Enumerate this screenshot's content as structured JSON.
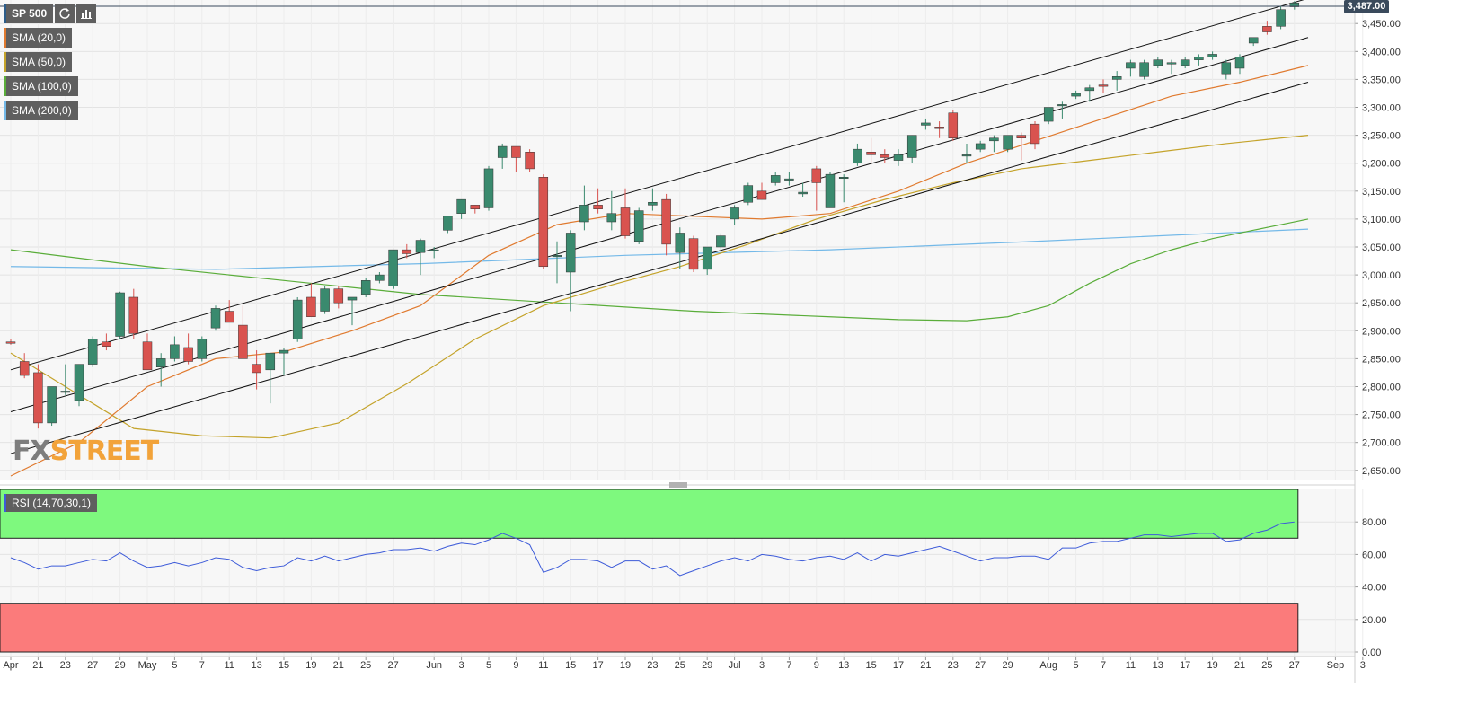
{
  "legend": {
    "symbol": "SP 500",
    "refresh_icon": "refresh-icon",
    "indicators_icon": "indicators-icon",
    "sma20": "SMA (20,0)",
    "sma50": "SMA (50,0)",
    "sma100": "SMA (100,0)",
    "sma200": "SMA (200,0)",
    "rsi": "RSI (14,70,30,1)"
  },
  "price_tag": "3,487.00",
  "watermark": {
    "part1": "FX",
    "part2": "STREET"
  },
  "colors": {
    "up": "#3a8a6e",
    "down": "#d9534f",
    "sma20": "#e07a2f",
    "sma50": "#c4a32a",
    "sma100": "#5aad3a",
    "sma200": "#74b9e8",
    "rsi_line": "#3d5bd9",
    "rsi_over": "#7ef97e",
    "rsi_under": "#fb7b7b",
    "channel": "#111111"
  },
  "chart_data": {
    "type": "candlestick",
    "title": "",
    "y_ticks": [
      "3,450.00",
      "3,400.00",
      "3,350.00",
      "3,300.00",
      "3,250.00",
      "3,200.00",
      "3,150.00",
      "3,100.00",
      "3,050.00",
      "3,000.00",
      "2,950.00",
      "2,900.00",
      "2,850.00",
      "2,800.00",
      "2,750.00",
      "2,700.00",
      "2,650.00"
    ],
    "ylim": [
      2640,
      3490
    ],
    "x_ticks": [
      {
        "label": "Apr",
        "idx": 0
      },
      {
        "label": "21",
        "idx": 2
      },
      {
        "label": "23",
        "idx": 4
      },
      {
        "label": "27",
        "idx": 6
      },
      {
        "label": "29",
        "idx": 8
      },
      {
        "label": "May",
        "idx": 10
      },
      {
        "label": "5",
        "idx": 12
      },
      {
        "label": "7",
        "idx": 14
      },
      {
        "label": "11",
        "idx": 16
      },
      {
        "label": "13",
        "idx": 18
      },
      {
        "label": "15",
        "idx": 20
      },
      {
        "label": "19",
        "idx": 22
      },
      {
        "label": "21",
        "idx": 24
      },
      {
        "label": "25",
        "idx": 26
      },
      {
        "label": "27",
        "idx": 28
      },
      {
        "label": "Jun",
        "idx": 31
      },
      {
        "label": "3",
        "idx": 33
      },
      {
        "label": "5",
        "idx": 35
      },
      {
        "label": "9",
        "idx": 37
      },
      {
        "label": "11",
        "idx": 39
      },
      {
        "label": "15",
        "idx": 41
      },
      {
        "label": "17",
        "idx": 43
      },
      {
        "label": "19",
        "idx": 45
      },
      {
        "label": "23",
        "idx": 47
      },
      {
        "label": "25",
        "idx": 49
      },
      {
        "label": "29",
        "idx": 51
      },
      {
        "label": "Jul",
        "idx": 53
      },
      {
        "label": "3",
        "idx": 55
      },
      {
        "label": "7",
        "idx": 57
      },
      {
        "label": "9",
        "idx": 59
      },
      {
        "label": "13",
        "idx": 61
      },
      {
        "label": "15",
        "idx": 63
      },
      {
        "label": "17",
        "idx": 65
      },
      {
        "label": "21",
        "idx": 67
      },
      {
        "label": "23",
        "idx": 69
      },
      {
        "label": "27",
        "idx": 71
      },
      {
        "label": "29",
        "idx": 73
      },
      {
        "label": "Aug",
        "idx": 76
      },
      {
        "label": "5",
        "idx": 78
      },
      {
        "label": "7",
        "idx": 80
      },
      {
        "label": "11",
        "idx": 82
      },
      {
        "label": "13",
        "idx": 84
      },
      {
        "label": "17",
        "idx": 86
      },
      {
        "label": "19",
        "idx": 88
      },
      {
        "label": "21",
        "idx": 90
      },
      {
        "label": "25",
        "idx": 92
      },
      {
        "label": "27",
        "idx": 94
      },
      {
        "label": "Sep",
        "idx": 97
      },
      {
        "label": "3",
        "idx": 99
      }
    ],
    "candles": [
      {
        "o": 2880,
        "h": 2885,
        "l": 2875,
        "c": 2878
      },
      {
        "o": 2845,
        "h": 2860,
        "l": 2815,
        "c": 2820
      },
      {
        "o": 2825,
        "h": 2840,
        "l": 2725,
        "c": 2735
      },
      {
        "o": 2735,
        "h": 2800,
        "l": 2730,
        "c": 2800
      },
      {
        "o": 2790,
        "h": 2840,
        "l": 2785,
        "c": 2792
      },
      {
        "o": 2775,
        "h": 2840,
        "l": 2765,
        "c": 2840
      },
      {
        "o": 2840,
        "h": 2890,
        "l": 2835,
        "c": 2885
      },
      {
        "o": 2880,
        "h": 2895,
        "l": 2865,
        "c": 2872
      },
      {
        "o": 2890,
        "h": 2970,
        "l": 2885,
        "c": 2968
      },
      {
        "o": 2960,
        "h": 2975,
        "l": 2885,
        "c": 2895
      },
      {
        "o": 2880,
        "h": 2895,
        "l": 2830,
        "c": 2830
      },
      {
        "o": 2835,
        "h": 2860,
        "l": 2800,
        "c": 2850
      },
      {
        "o": 2850,
        "h": 2890,
        "l": 2845,
        "c": 2875
      },
      {
        "o": 2870,
        "h": 2895,
        "l": 2840,
        "c": 2845
      },
      {
        "o": 2850,
        "h": 2890,
        "l": 2845,
        "c": 2885
      },
      {
        "o": 2905,
        "h": 2945,
        "l": 2900,
        "c": 2940
      },
      {
        "o": 2935,
        "h": 2955,
        "l": 2915,
        "c": 2915
      },
      {
        "o": 2910,
        "h": 2945,
        "l": 2850,
        "c": 2850
      },
      {
        "o": 2840,
        "h": 2865,
        "l": 2795,
        "c": 2825
      },
      {
        "o": 2830,
        "h": 2860,
        "l": 2770,
        "c": 2860
      },
      {
        "o": 2860,
        "h": 2870,
        "l": 2820,
        "c": 2865
      },
      {
        "o": 2885,
        "h": 2960,
        "l": 2880,
        "c": 2955
      },
      {
        "o": 2960,
        "h": 2985,
        "l": 2925,
        "c": 2925
      },
      {
        "o": 2935,
        "h": 2980,
        "l": 2930,
        "c": 2975
      },
      {
        "o": 2975,
        "h": 2980,
        "l": 2940,
        "c": 2950
      },
      {
        "o": 2955,
        "h": 2960,
        "l": 2910,
        "c": 2960
      },
      {
        "o": 2965,
        "h": 2995,
        "l": 2960,
        "c": 2990
      },
      {
        "o": 2990,
        "h": 3005,
        "l": 2985,
        "c": 3000
      },
      {
        "o": 2980,
        "h": 3045,
        "l": 2975,
        "c": 3045
      },
      {
        "o": 3045,
        "h": 3055,
        "l": 3030,
        "c": 3038
      },
      {
        "o": 3040,
        "h": 3065,
        "l": 3000,
        "c": 3062
      },
      {
        "o": 3045,
        "h": 3050,
        "l": 3030,
        "c": 3045
      },
      {
        "o": 3080,
        "h": 3105,
        "l": 3075,
        "c": 3105
      },
      {
        "o": 3110,
        "h": 3135,
        "l": 3100,
        "c": 3135
      },
      {
        "o": 3125,
        "h": 3125,
        "l": 3110,
        "c": 3118
      },
      {
        "o": 3120,
        "h": 3195,
        "l": 3115,
        "c": 3190
      },
      {
        "o": 3210,
        "h": 3235,
        "l": 3190,
        "c": 3230
      },
      {
        "o": 3230,
        "h": 3230,
        "l": 3185,
        "c": 3210
      },
      {
        "o": 3220,
        "h": 3225,
        "l": 3185,
        "c": 3190
      },
      {
        "o": 3175,
        "h": 3180,
        "l": 3010,
        "c": 3015
      },
      {
        "o": 3035,
        "h": 3060,
        "l": 2985,
        "c": 3035
      },
      {
        "o": 3005,
        "h": 3080,
        "l": 2935,
        "c": 3075
      },
      {
        "o": 3095,
        "h": 3160,
        "l": 3080,
        "c": 3125
      },
      {
        "o": 3125,
        "h": 3155,
        "l": 3110,
        "c": 3118
      },
      {
        "o": 3095,
        "h": 3150,
        "l": 3080,
        "c": 3110
      },
      {
        "o": 3120,
        "h": 3155,
        "l": 3065,
        "c": 3070
      },
      {
        "o": 3060,
        "h": 3120,
        "l": 3055,
        "c": 3115
      },
      {
        "o": 3125,
        "h": 3155,
        "l": 3115,
        "c": 3130
      },
      {
        "o": 3135,
        "h": 3145,
        "l": 3035,
        "c": 3055
      },
      {
        "o": 3040,
        "h": 3085,
        "l": 3010,
        "c": 3075
      },
      {
        "o": 3065,
        "h": 3070,
        "l": 3005,
        "c": 3010
      },
      {
        "o": 3010,
        "h": 3050,
        "l": 3000,
        "c": 3050
      },
      {
        "o": 3050,
        "h": 3075,
        "l": 3045,
        "c": 3070
      },
      {
        "o": 3100,
        "h": 3125,
        "l": 3090,
        "c": 3120
      },
      {
        "o": 3130,
        "h": 3165,
        "l": 3125,
        "c": 3160
      },
      {
        "o": 3150,
        "h": 3165,
        "l": 3135,
        "c": 3135
      },
      {
        "o": 3165,
        "h": 3185,
        "l": 3160,
        "c": 3178
      },
      {
        "o": 3172,
        "h": 3185,
        "l": 3160,
        "c": 3172
      },
      {
        "o": 3145,
        "h": 3165,
        "l": 3140,
        "c": 3148
      },
      {
        "o": 3190,
        "h": 3195,
        "l": 3115,
        "c": 3165
      },
      {
        "o": 3120,
        "h": 3185,
        "l": 3120,
        "c": 3180
      },
      {
        "o": 3175,
        "h": 3180,
        "l": 3130,
        "c": 3175
      },
      {
        "o": 3200,
        "h": 3235,
        "l": 3195,
        "c": 3225
      },
      {
        "o": 3220,
        "h": 3245,
        "l": 3200,
        "c": 3215
      },
      {
        "o": 3215,
        "h": 3225,
        "l": 3200,
        "c": 3210
      },
      {
        "o": 3205,
        "h": 3225,
        "l": 3195,
        "c": 3215
      },
      {
        "o": 3210,
        "h": 3250,
        "l": 3200,
        "c": 3250
      },
      {
        "o": 3268,
        "h": 3280,
        "l": 3260,
        "c": 3272
      },
      {
        "o": 3265,
        "h": 3275,
        "l": 3245,
        "c": 3262
      },
      {
        "o": 3290,
        "h": 3295,
        "l": 3240,
        "c": 3245
      },
      {
        "o": 3215,
        "h": 3235,
        "l": 3200,
        "c": 3215
      },
      {
        "o": 3225,
        "h": 3240,
        "l": 3220,
        "c": 3235
      },
      {
        "o": 3240,
        "h": 3250,
        "l": 3220,
        "c": 3245
      },
      {
        "o": 3225,
        "h": 3250,
        "l": 3220,
        "c": 3250
      },
      {
        "o": 3250,
        "h": 3255,
        "l": 3205,
        "c": 3245
      },
      {
        "o": 3270,
        "h": 3275,
        "l": 3225,
        "c": 3235
      },
      {
        "o": 3275,
        "h": 3300,
        "l": 3270,
        "c": 3300
      },
      {
        "o": 3305,
        "h": 3310,
        "l": 3280,
        "c": 3305
      },
      {
        "o": 3320,
        "h": 3330,
        "l": 3315,
        "c": 3325
      },
      {
        "o": 3330,
        "h": 3340,
        "l": 3310,
        "c": 3335
      },
      {
        "o": 3340,
        "h": 3350,
        "l": 3325,
        "c": 3338
      },
      {
        "o": 3350,
        "h": 3365,
        "l": 3330,
        "c": 3355
      },
      {
        "o": 3370,
        "h": 3385,
        "l": 3355,
        "c": 3380
      },
      {
        "o": 3355,
        "h": 3385,
        "l": 3350,
        "c": 3380
      },
      {
        "o": 3375,
        "h": 3390,
        "l": 3370,
        "c": 3385
      },
      {
        "o": 3380,
        "h": 3385,
        "l": 3360,
        "c": 3380
      },
      {
        "o": 3375,
        "h": 3390,
        "l": 3370,
        "c": 3385
      },
      {
        "o": 3385,
        "h": 3395,
        "l": 3375,
        "c": 3390
      },
      {
        "o": 3390,
        "h": 3400,
        "l": 3385,
        "c": 3395
      },
      {
        "o": 3360,
        "h": 3385,
        "l": 3350,
        "c": 3380
      },
      {
        "o": 3370,
        "h": 3395,
        "l": 3360,
        "c": 3390
      },
      {
        "o": 3415,
        "h": 3425,
        "l": 3410,
        "c": 3425
      },
      {
        "o": 3445,
        "h": 3455,
        "l": 3430,
        "c": 3435
      },
      {
        "o": 3445,
        "h": 3480,
        "l": 3440,
        "c": 3475
      },
      {
        "o": 3480,
        "h": 3490,
        "l": 3475,
        "c": 3487
      }
    ],
    "sma20": [
      [
        0,
        2640
      ],
      [
        5,
        2700
      ],
      [
        10,
        2800
      ],
      [
        15,
        2850
      ],
      [
        20,
        2862
      ],
      [
        25,
        2900
      ],
      [
        30,
        2945
      ],
      [
        35,
        3035
      ],
      [
        40,
        3090
      ],
      [
        45,
        3110
      ],
      [
        50,
        3105
      ],
      [
        55,
        3100
      ],
      [
        60,
        3110
      ],
      [
        65,
        3150
      ],
      [
        70,
        3200
      ],
      [
        75,
        3240
      ],
      [
        80,
        3280
      ],
      [
        85,
        3320
      ],
      [
        90,
        3345
      ],
      [
        95,
        3375
      ]
    ],
    "sma50": [
      [
        0,
        2860
      ],
      [
        4,
        2800
      ],
      [
        9,
        2725
      ],
      [
        14,
        2712
      ],
      [
        19,
        2708
      ],
      [
        24,
        2735
      ],
      [
        29,
        2805
      ],
      [
        34,
        2885
      ],
      [
        39,
        2945
      ],
      [
        44,
        2982
      ],
      [
        49,
        3015
      ],
      [
        54,
        3055
      ],
      [
        59,
        3100
      ],
      [
        64,
        3135
      ],
      [
        69,
        3165
      ],
      [
        74,
        3190
      ],
      [
        79,
        3205
      ],
      [
        84,
        3220
      ],
      [
        89,
        3235
      ],
      [
        95,
        3250
      ]
    ],
    "sma100": [
      [
        0,
        3045
      ],
      [
        10,
        3015
      ],
      [
        20,
        2990
      ],
      [
        30,
        2965
      ],
      [
        40,
        2950
      ],
      [
        50,
        2935
      ],
      [
        60,
        2925
      ],
      [
        65,
        2920
      ],
      [
        70,
        2918
      ],
      [
        73,
        2925
      ],
      [
        76,
        2945
      ],
      [
        79,
        2985
      ],
      [
        82,
        3020
      ],
      [
        85,
        3045
      ],
      [
        88,
        3065
      ],
      [
        91,
        3080
      ],
      [
        95,
        3100
      ]
    ],
    "sma200": [
      [
        0,
        3015
      ],
      [
        15,
        3010
      ],
      [
        30,
        3020
      ],
      [
        45,
        3035
      ],
      [
        60,
        3045
      ],
      [
        75,
        3060
      ],
      [
        95,
        3082
      ]
    ],
    "channels": [
      {
        "a": [
          0,
          2830
        ],
        "b": [
          95,
          3495
        ]
      },
      {
        "a": [
          0,
          2755
        ],
        "b": [
          95,
          3425
        ]
      },
      {
        "a": [
          0,
          2680
        ],
        "b": [
          95,
          3345
        ]
      }
    ],
    "rsi": {
      "y_ticks": [
        "80.00",
        "60.00",
        "40.00",
        "20.00",
        "0.00"
      ],
      "ylim": [
        0,
        100
      ],
      "overbought": 70,
      "oversold": 30,
      "values": [
        58,
        55,
        51,
        53,
        53,
        55,
        57,
        56,
        61,
        56,
        52,
        53,
        55,
        53,
        55,
        58,
        57,
        52,
        50,
        52,
        53,
        58,
        56,
        59,
        56,
        58,
        60,
        61,
        63,
        63,
        64,
        62,
        65,
        67,
        66,
        69,
        73,
        70,
        66,
        49,
        52,
        57,
        57,
        56,
        52,
        56,
        56,
        51,
        53,
        47,
        50,
        53,
        56,
        58,
        56,
        60,
        59,
        57,
        56,
        58,
        59,
        57,
        61,
        56,
        60,
        59,
        61,
        63,
        65,
        62,
        59,
        56,
        58,
        58,
        59,
        59,
        57,
        64,
        64,
        67,
        68,
        68,
        70,
        72,
        72,
        71,
        72,
        73,
        73,
        68,
        69,
        73,
        75,
        79,
        80
      ]
    }
  }
}
